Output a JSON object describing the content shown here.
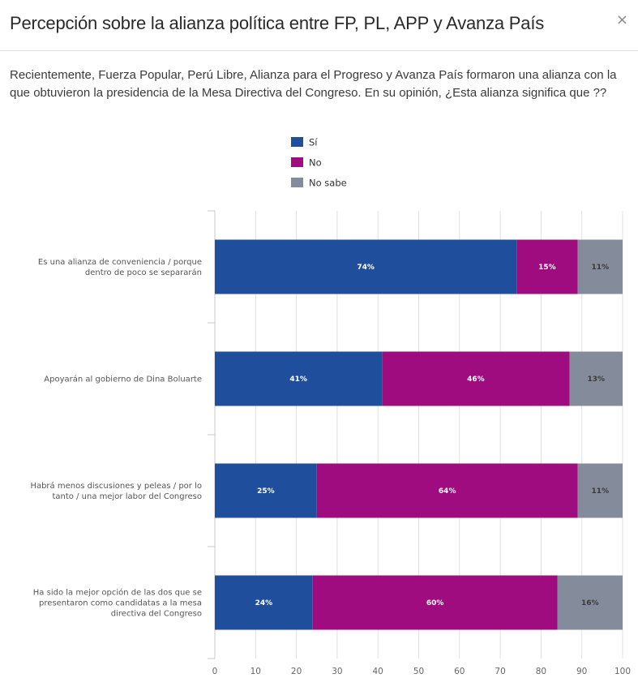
{
  "dialog": {
    "title": "Percepción sobre la alianza política entre FP, PL, APP y Avanza País",
    "close_label": "×",
    "close_icon": "close-icon",
    "question": "Recientemente, Fuerza Popular, Perú Libre, Alianza para el Progreso y Avanza País formaron una alianza con la que obtuvieron la presidencia de la Mesa Directiva del Congreso. En su opinión, ¿Esta alianza significa que ??"
  },
  "chart_data": {
    "type": "bar",
    "orientation": "horizontal",
    "stacked": true,
    "title": "",
    "xlabel": "",
    "ylabel": "",
    "xlim": [
      0,
      100
    ],
    "x_ticks": [
      0,
      10,
      20,
      30,
      40,
      50,
      60,
      70,
      80,
      90,
      100
    ],
    "grid": true,
    "legend_position": "top-center",
    "categories": [
      [
        "Es una alianza de conveniencia / porque",
        "dentro de poco se separarán"
      ],
      [
        "Apoyarán al gobierno de Dina Boluarte"
      ],
      [
        "Habrá menos discusiones y peleas / por lo",
        "tanto / una mejor labor del Congreso"
      ],
      [
        "Ha sido la mejor opción de las dos que se",
        "presentaron como candidatas a la mesa",
        "directiva del Congreso"
      ]
    ],
    "series": [
      {
        "name": "Sí",
        "color": "#1f4e9c",
        "label_color": "#ffffff",
        "values": [
          74,
          41,
          25,
          24
        ],
        "labels": [
          "74%",
          "41%",
          "25%",
          "24%"
        ]
      },
      {
        "name": "No",
        "color": "#9e0c80",
        "label_color": "#ffffff",
        "values": [
          15,
          46,
          64,
          60
        ],
        "labels": [
          "15%",
          "46%",
          "64%",
          "60%"
        ]
      },
      {
        "name": "No sabe",
        "color": "#848c9c",
        "label_color": "#3a3a3a",
        "values": [
          11,
          13,
          11,
          16
        ],
        "labels": [
          "11%",
          "13%",
          "11%",
          "16%"
        ]
      }
    ]
  }
}
